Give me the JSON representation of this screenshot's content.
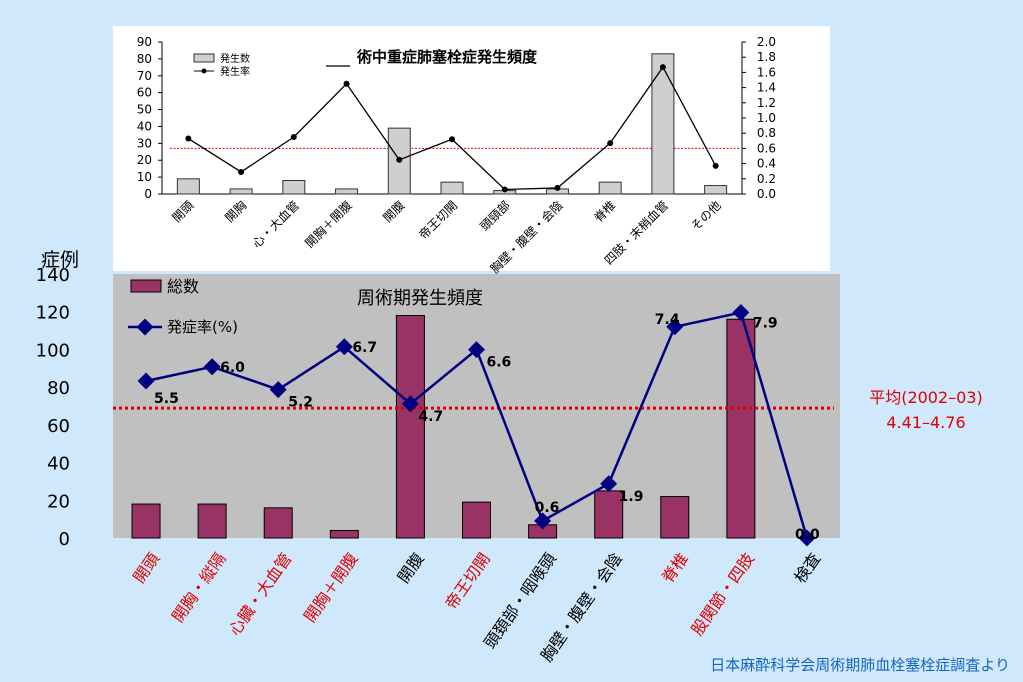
{
  "chart_data": [
    {
      "type": "bar",
      "title": "術中重症肺塞栓症発生頻度",
      "categories": [
        "開頭",
        "開胸",
        "心・大血管",
        "開胸＋開腹",
        "開腹",
        "帝王切開",
        "頭頸部",
        "胸壁・腹壁・会陰",
        "脊椎",
        "四肢・末梢血管",
        "その他"
      ],
      "series": [
        {
          "name": "発生数",
          "type": "bar",
          "axis": "left",
          "values": [
            9,
            3,
            8,
            3,
            39,
            7,
            2,
            3,
            7,
            83,
            5
          ]
        },
        {
          "name": "発生率",
          "type": "line",
          "axis": "right",
          "values": [
            0.73,
            0.29,
            0.75,
            1.45,
            0.45,
            0.72,
            0.06,
            0.08,
            0.67,
            1.67,
            0.37
          ]
        }
      ],
      "y_left_ticks": [
        "0",
        "10",
        "20",
        "30",
        "40",
        "50",
        "60",
        "70",
        "80",
        "90"
      ],
      "y_right_ticks": [
        "0.0",
        "0.2",
        "0.4",
        "0.6",
        "0.8",
        "1.0",
        "1.2",
        "1.4",
        "1.6",
        "1.8",
        "2.0"
      ],
      "ylim_left": [
        0,
        90
      ],
      "ylim_right": [
        0,
        2.0
      ],
      "reference_line": {
        "value": 0.6,
        "axis": "right",
        "color": "#e00000"
      }
    },
    {
      "type": "bar",
      "title": "周術期発生頻度",
      "ylabel": "症例",
      "categories": [
        "開頭",
        "開胸・縦隔",
        "心臓・大血管",
        "開胸＋開腹",
        "開腹",
        "帝王切開",
        "頭頚部・咽喉頭",
        "胸壁・腹壁・会陰",
        "脊椎",
        "股関節・四肢",
        "検査"
      ],
      "category_colors": [
        "#e00000",
        "#e00000",
        "#e00000",
        "#e00000",
        "#000000",
        "#e00000",
        "#000000",
        "#000000",
        "#e00000",
        "#e00000",
        "#000000"
      ],
      "series": [
        {
          "name": "総数",
          "type": "bar",
          "color": "#993366",
          "values": [
            18,
            18,
            16,
            4,
            118,
            19,
            7,
            25,
            22,
            116,
            0
          ]
        },
        {
          "name": "発症率(%)",
          "type": "line",
          "color": "#000080",
          "values": [
            5.5,
            6.0,
            5.2,
            6.7,
            4.7,
            6.6,
            0.6,
            1.9,
            7.4,
            7.9,
            0.0
          ]
        }
      ],
      "data_labels": [
        "5.5",
        "6.0",
        "5.2",
        "6.7",
        "4.7",
        "6.6",
        "0.6",
        "1.9",
        "7.4",
        "7.9",
        "0.0"
      ],
      "y_ticks": [
        "0",
        "20",
        "40",
        "60",
        "80",
        "100",
        "120",
        "140"
      ],
      "ylim": [
        0,
        140
      ],
      "line_ylim": [
        0,
        9.25
      ],
      "average_line": {
        "value": 4.55,
        "color": "#e00000"
      },
      "legend_position": "top-left"
    }
  ],
  "annotation": {
    "average_title": "平均(2002–03)",
    "average_range": "4.41–4.76",
    "color": "#e00000"
  },
  "source": "日本麻酔科学会周術期肺血栓塞栓症調査より"
}
